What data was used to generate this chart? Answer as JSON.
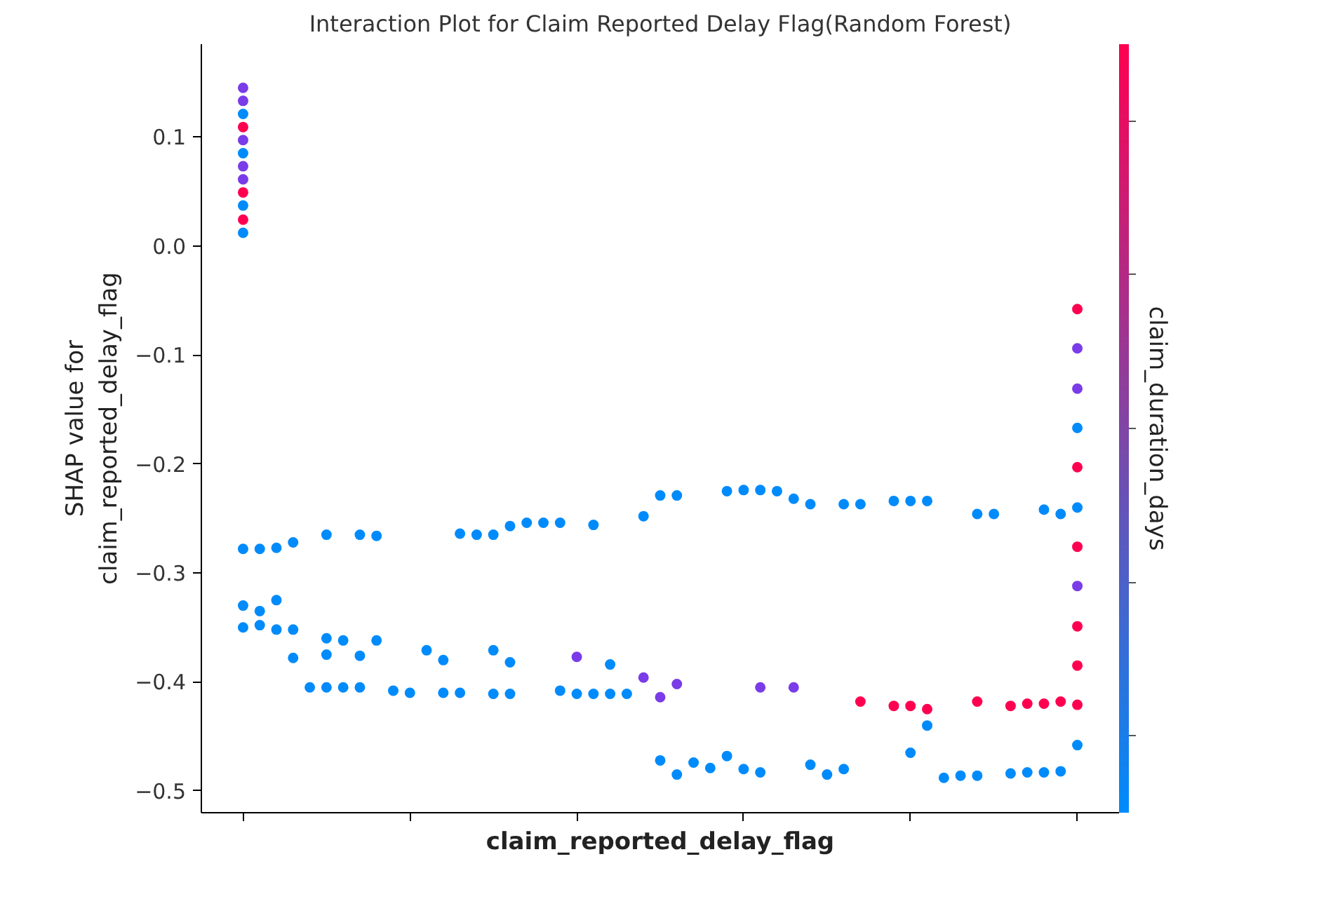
{
  "chart_data": {
    "type": "scatter",
    "title": "Interaction Plot for Claim Reported Delay Flag(Random Forest)",
    "xlabel": "claim_reported_delay_flag",
    "ylabel": "SHAP value for\nclaim_reported_delay_flag",
    "clabel": "claim_duration_days",
    "categories": [
      null,
      null,
      null,
      null,
      null,
      null,
      null,
      null,
      null,
      null,
      null,
      null,
      null,
      null,
      null,
      null,
      null,
      null,
      null,
      null,
      null,
      null,
      null,
      null,
      null,
      null,
      null,
      null,
      null,
      null,
      null,
      null,
      null,
      null,
      null,
      null,
      null,
      null,
      null,
      null,
      null,
      null,
      null,
      null,
      null,
      null,
      null,
      null,
      null,
      null,
      null,
      null,
      null,
      null,
      null
    ],
    "ylim": [
      -0.52,
      0.185
    ],
    "yticks": [
      {
        "value": -0.5,
        "label": "−0.5"
      },
      {
        "value": -0.4,
        "label": "−0.4"
      },
      {
        "value": -0.3,
        "label": "−0.3"
      },
      {
        "value": -0.2,
        "label": "−0.2"
      },
      {
        "value": -0.1,
        "label": "−0.1"
      },
      {
        "value": 0,
        "label": "0.0"
      },
      0.1
    ],
    "grid": false,
    "marker": "circle",
    "series": [
      {
        "values": [
          null,
          null,
          -0.278,
          -0.278,
          -0.277,
          -0.272,
          null,
          -0.265,
          null,
          -0.265,
          -0.266,
          null,
          null,
          null,
          null,
          -0.264,
          -0.265,
          -0.265,
          -0.257,
          -0.254,
          -0.254,
          -0.254,
          null,
          -0.256,
          null,
          null,
          -0.248,
          -0.229,
          -0.229,
          null,
          null,
          -0.225,
          -0.224,
          -0.224,
          -0.225,
          -0.232,
          -0.237,
          null,
          -0.237,
          -0.237,
          null,
          -0.234,
          -0.234,
          -0.234,
          null,
          null,
          -0.246,
          -0.246,
          null,
          null,
          -0.242,
          -0.246,
          null,
          null,
          null
        ],
        "color": "#008bfb"
      },
      {
        "values": [
          null,
          null,
          -0.33,
          -0.335,
          -0.325,
          null,
          null,
          -0.36,
          -0.362,
          null,
          -0.362,
          null,
          null,
          null,
          null,
          null,
          null,
          null,
          null,
          null,
          null,
          null,
          -0.377,
          null,
          null,
          null,
          -0.396,
          null,
          -0.402,
          null,
          null,
          null,
          null,
          -0.405,
          null,
          -0.405,
          null,
          null,
          null,
          -0.418,
          null,
          -0.422,
          -0.422,
          -0.425,
          null,
          null,
          -0.418,
          null,
          -0.422,
          -0.42,
          -0.42,
          -0.418,
          null,
          null,
          null
        ],
        "colors": [
          null,
          null,
          "#008bfb",
          "#008bfb",
          "#008bfb",
          null,
          null,
          "#008bfb",
          "#008bfb",
          null,
          "#008bfb",
          null,
          null,
          null,
          null,
          null,
          null,
          null,
          null,
          null,
          null,
          null,
          "#7a3ce8",
          null,
          null,
          null,
          "#7a3ce8",
          null,
          "#7a3ce8",
          null,
          null,
          null,
          null,
          "#7a3ce8",
          null,
          "#7a3ce8",
          null,
          null,
          null,
          "#ff0051",
          null,
          "#ff0051",
          "#ff0051",
          "#ff0051",
          null,
          null,
          "#ff0051",
          null,
          "#ff0051",
          "#ff0051",
          "#ff0051",
          "#ff0051",
          null,
          null,
          null
        ]
      },
      {
        "values": [
          null,
          null,
          -0.35,
          -0.348,
          -0.352,
          -0.352,
          null,
          -0.375,
          null,
          -0.376,
          null,
          null,
          null,
          -0.371,
          -0.38,
          null,
          null,
          -0.371,
          -0.382,
          null,
          null,
          null,
          null,
          null,
          -0.384,
          null,
          null,
          -0.414,
          null,
          null,
          null,
          null,
          null,
          null,
          null,
          null,
          null,
          null,
          null,
          null,
          null,
          null,
          -0.465,
          -0.44,
          null,
          null,
          null,
          null,
          null,
          null,
          null,
          null,
          null,
          null,
          null
        ],
        "colors": [
          null,
          null,
          "#008bfb",
          "#008bfb",
          "#008bfb",
          "#008bfb",
          null,
          "#008bfb",
          null,
          "#008bfb",
          null,
          null,
          null,
          "#008bfb",
          "#008bfb",
          null,
          null,
          "#008bfb",
          "#008bfb",
          null,
          null,
          null,
          null,
          null,
          "#008bfb",
          null,
          null,
          "#7a3ce8",
          null,
          null,
          null,
          null,
          null,
          null,
          null,
          null,
          null,
          null,
          null,
          null,
          null,
          null,
          "#008bfb",
          "#008bfb",
          null,
          null,
          null,
          null,
          null,
          null,
          null,
          null,
          null,
          null,
          null
        ]
      },
      {
        "values": [
          null,
          null,
          null,
          null,
          null,
          -0.378,
          -0.405,
          -0.405,
          -0.405,
          -0.405,
          null,
          -0.408,
          -0.41,
          null,
          -0.41,
          -0.41,
          null,
          -0.411,
          -0.411,
          null,
          null,
          -0.408,
          -0.411,
          -0.411,
          -0.411,
          -0.411,
          null,
          -0.472,
          -0.485,
          -0.474,
          -0.479,
          -0.468,
          -0.48,
          -0.483,
          null,
          null,
          -0.476,
          -0.485,
          -0.48,
          null,
          null,
          null,
          null,
          null,
          -0.488,
          -0.486,
          -0.486,
          null,
          -0.484,
          -0.483,
          -0.483,
          -0.482,
          null,
          null,
          null
        ],
        "color": "#008bfb"
      },
      {
        "values": [
          null,
          null,
          0.145,
          null,
          null,
          null,
          null,
          null,
          null,
          null,
          null,
          null,
          null,
          null,
          null,
          null,
          null,
          null,
          null,
          null,
          null,
          null,
          null,
          null,
          null,
          null,
          null,
          null,
          null,
          null,
          null,
          null,
          null,
          null,
          null,
          null,
          null,
          null,
          null,
          null,
          null,
          null,
          null,
          null,
          null,
          null,
          null,
          null,
          null,
          null,
          null,
          null,
          -0.058,
          null,
          null
        ],
        "colors": [
          null,
          null,
          "#7a3ce8",
          null,
          null,
          null,
          null,
          null,
          null,
          null,
          null,
          null,
          null,
          null,
          null,
          null,
          null,
          null,
          null,
          null,
          null,
          null,
          null,
          null,
          null,
          null,
          null,
          null,
          null,
          null,
          null,
          null,
          null,
          null,
          null,
          null,
          null,
          null,
          null,
          null,
          null,
          null,
          null,
          null,
          null,
          null,
          null,
          null,
          null,
          null,
          null,
          null,
          "#ff0051",
          null,
          null
        ]
      },
      {
        "values": [
          null,
          null,
          0.133,
          null,
          null,
          null,
          null,
          null,
          null,
          null,
          null,
          null,
          null,
          null,
          null,
          null,
          null,
          null,
          null,
          null,
          null,
          null,
          null,
          null,
          null,
          null,
          null,
          null,
          null,
          null,
          null,
          null,
          null,
          null,
          null,
          null,
          null,
          null,
          null,
          null,
          null,
          null,
          null,
          null,
          null,
          null,
          null,
          null,
          null,
          null,
          null,
          null,
          -0.094,
          null,
          null
        ],
        "colors": [
          null,
          null,
          "#7a3ce8",
          null,
          null,
          null,
          null,
          null,
          null,
          null,
          null,
          null,
          null,
          null,
          null,
          null,
          null,
          null,
          null,
          null,
          null,
          null,
          null,
          null,
          null,
          null,
          null,
          null,
          null,
          null,
          null,
          null,
          null,
          null,
          null,
          null,
          null,
          null,
          null,
          null,
          null,
          null,
          null,
          null,
          null,
          null,
          null,
          null,
          null,
          null,
          null,
          null,
          "#7a3ce8",
          null,
          null
        ]
      },
      {
        "values": [
          null,
          null,
          0.121,
          null,
          null,
          null,
          null,
          null,
          null,
          null,
          null,
          null,
          null,
          null,
          null,
          null,
          null,
          null,
          null,
          null,
          null,
          null,
          null,
          null,
          null,
          null,
          null,
          null,
          null,
          null,
          null,
          null,
          null,
          null,
          null,
          null,
          null,
          null,
          null,
          null,
          null,
          null,
          null,
          null,
          null,
          null,
          null,
          null,
          null,
          null,
          null,
          null,
          -0.131,
          null,
          null
        ],
        "colors": [
          null,
          null,
          "#008bfb",
          null,
          null,
          null,
          null,
          null,
          null,
          null,
          null,
          null,
          null,
          null,
          null,
          null,
          null,
          null,
          null,
          null,
          null,
          null,
          null,
          null,
          null,
          null,
          null,
          null,
          null,
          null,
          null,
          null,
          null,
          null,
          null,
          null,
          null,
          null,
          null,
          null,
          null,
          null,
          null,
          null,
          null,
          null,
          null,
          null,
          null,
          null,
          null,
          null,
          "#7a3ce8",
          null,
          null
        ]
      },
      {
        "values": [
          null,
          null,
          0.109,
          null,
          null,
          null,
          null,
          null,
          null,
          null,
          null,
          null,
          null,
          null,
          null,
          null,
          null,
          null,
          null,
          null,
          null,
          null,
          null,
          null,
          null,
          null,
          null,
          null,
          null,
          null,
          null,
          null,
          null,
          null,
          null,
          null,
          null,
          null,
          null,
          null,
          null,
          null,
          null,
          null,
          null,
          null,
          null,
          null,
          null,
          null,
          null,
          null,
          -0.167,
          null,
          null
        ],
        "colors": [
          null,
          null,
          "#ff0051",
          null,
          null,
          null,
          null,
          null,
          null,
          null,
          null,
          null,
          null,
          null,
          null,
          null,
          null,
          null,
          null,
          null,
          null,
          null,
          null,
          null,
          null,
          null,
          null,
          null,
          null,
          null,
          null,
          null,
          null,
          null,
          null,
          null,
          null,
          null,
          null,
          null,
          null,
          null,
          null,
          null,
          null,
          null,
          null,
          null,
          null,
          null,
          null,
          null,
          "#008bfb",
          null,
          null
        ]
      },
      {
        "values": [
          null,
          null,
          0.097,
          null,
          null,
          null,
          null,
          null,
          null,
          null,
          null,
          null,
          null,
          null,
          null,
          null,
          null,
          null,
          null,
          null,
          null,
          null,
          null,
          null,
          null,
          null,
          null,
          null,
          null,
          null,
          null,
          null,
          null,
          null,
          null,
          null,
          null,
          null,
          null,
          null,
          null,
          null,
          null,
          null,
          null,
          null,
          null,
          null,
          null,
          null,
          null,
          null,
          -0.203,
          null,
          null
        ],
        "colors": [
          null,
          null,
          "#7a3ce8",
          null,
          null,
          null,
          null,
          null,
          null,
          null,
          null,
          null,
          null,
          null,
          null,
          null,
          null,
          null,
          null,
          null,
          null,
          null,
          null,
          null,
          null,
          null,
          null,
          null,
          null,
          null,
          null,
          null,
          null,
          null,
          null,
          null,
          null,
          null,
          null,
          null,
          null,
          null,
          null,
          null,
          null,
          null,
          null,
          null,
          null,
          null,
          null,
          null,
          "#ff0051",
          null,
          null
        ]
      },
      {
        "values": [
          null,
          null,
          0.085,
          null,
          null,
          null,
          null,
          null,
          null,
          null,
          null,
          null,
          null,
          null,
          null,
          null,
          null,
          null,
          null,
          null,
          null,
          null,
          null,
          null,
          null,
          null,
          null,
          null,
          null,
          null,
          null,
          null,
          null,
          null,
          null,
          null,
          null,
          null,
          null,
          null,
          null,
          null,
          null,
          null,
          null,
          null,
          null,
          null,
          null,
          null,
          null,
          null,
          -0.24,
          null,
          null
        ],
        "colors": [
          null,
          null,
          "#008bfb",
          null,
          null,
          null,
          null,
          null,
          null,
          null,
          null,
          null,
          null,
          null,
          null,
          null,
          null,
          null,
          null,
          null,
          null,
          null,
          null,
          null,
          null,
          null,
          null,
          null,
          null,
          null,
          null,
          null,
          null,
          null,
          null,
          null,
          null,
          null,
          null,
          null,
          null,
          null,
          null,
          null,
          null,
          null,
          null,
          null,
          null,
          null,
          null,
          null,
          "#008bfb",
          null,
          null
        ]
      },
      {
        "values": [
          null,
          null,
          0.073,
          null,
          null,
          null,
          null,
          null,
          null,
          null,
          null,
          null,
          null,
          null,
          null,
          null,
          null,
          null,
          null,
          null,
          null,
          null,
          null,
          null,
          null,
          null,
          null,
          null,
          null,
          null,
          null,
          null,
          null,
          null,
          null,
          null,
          null,
          null,
          null,
          null,
          null,
          null,
          null,
          null,
          null,
          null,
          null,
          null,
          null,
          null,
          null,
          null,
          -0.276,
          null,
          null
        ],
        "colors": [
          null,
          null,
          "#7a3ce8",
          null,
          null,
          null,
          null,
          null,
          null,
          null,
          null,
          null,
          null,
          null,
          null,
          null,
          null,
          null,
          null,
          null,
          null,
          null,
          null,
          null,
          null,
          null,
          null,
          null,
          null,
          null,
          null,
          null,
          null,
          null,
          null,
          null,
          null,
          null,
          null,
          null,
          null,
          null,
          null,
          null,
          null,
          null,
          null,
          null,
          null,
          null,
          null,
          null,
          "#ff0051",
          null,
          null
        ]
      },
      {
        "values": [
          null,
          null,
          0.061,
          null,
          null,
          null,
          null,
          null,
          null,
          null,
          null,
          null,
          null,
          null,
          null,
          null,
          null,
          null,
          null,
          null,
          null,
          null,
          null,
          null,
          null,
          null,
          null,
          null,
          null,
          null,
          null,
          null,
          null,
          null,
          null,
          null,
          null,
          null,
          null,
          null,
          null,
          null,
          null,
          null,
          null,
          null,
          null,
          null,
          null,
          null,
          null,
          null,
          -0.312,
          null,
          null
        ],
        "colors": [
          null,
          null,
          "#7a3ce8",
          null,
          null,
          null,
          null,
          null,
          null,
          null,
          null,
          null,
          null,
          null,
          null,
          null,
          null,
          null,
          null,
          null,
          null,
          null,
          null,
          null,
          null,
          null,
          null,
          null,
          null,
          null,
          null,
          null,
          null,
          null,
          null,
          null,
          null,
          null,
          null,
          null,
          null,
          null,
          null,
          null,
          null,
          null,
          null,
          null,
          null,
          null,
          null,
          null,
          "#7a3ce8",
          null,
          null
        ]
      },
      {
        "values": [
          null,
          null,
          0.049,
          null,
          null,
          null,
          null,
          null,
          null,
          null,
          null,
          null,
          null,
          null,
          null,
          null,
          null,
          null,
          null,
          null,
          null,
          null,
          null,
          null,
          null,
          null,
          null,
          null,
          null,
          null,
          null,
          null,
          null,
          null,
          null,
          null,
          null,
          null,
          null,
          null,
          null,
          null,
          null,
          null,
          null,
          null,
          null,
          null,
          null,
          null,
          null,
          null,
          -0.349,
          null,
          null
        ],
        "colors": [
          null,
          null,
          "#ff0051",
          null,
          null,
          null,
          null,
          null,
          null,
          null,
          null,
          null,
          null,
          null,
          null,
          null,
          null,
          null,
          null,
          null,
          null,
          null,
          null,
          null,
          null,
          null,
          null,
          null,
          null,
          null,
          null,
          null,
          null,
          null,
          null,
          null,
          null,
          null,
          null,
          null,
          null,
          null,
          null,
          null,
          null,
          null,
          null,
          null,
          null,
          null,
          null,
          null,
          "#ff0051",
          null,
          null
        ]
      },
      {
        "values": [
          null,
          null,
          0.037,
          null,
          null,
          null,
          null,
          null,
          null,
          null,
          null,
          null,
          null,
          null,
          null,
          null,
          null,
          null,
          null,
          null,
          null,
          null,
          null,
          null,
          null,
          null,
          null,
          null,
          null,
          null,
          null,
          null,
          null,
          null,
          null,
          null,
          null,
          null,
          null,
          null,
          null,
          null,
          null,
          null,
          null,
          null,
          null,
          null,
          null,
          null,
          null,
          null,
          -0.385,
          null,
          null
        ],
        "colors": [
          null,
          null,
          "#008bfb",
          null,
          null,
          null,
          null,
          null,
          null,
          null,
          null,
          null,
          null,
          null,
          null,
          null,
          null,
          null,
          null,
          null,
          null,
          null,
          null,
          null,
          null,
          null,
          null,
          null,
          null,
          null,
          null,
          null,
          null,
          null,
          null,
          null,
          null,
          null,
          null,
          null,
          null,
          null,
          null,
          null,
          null,
          null,
          null,
          null,
          null,
          null,
          null,
          null,
          "#ff0051",
          null,
          null
        ]
      },
      {
        "values": [
          null,
          null,
          0.024,
          null,
          null,
          null,
          null,
          null,
          null,
          null,
          null,
          null,
          null,
          null,
          null,
          null,
          null,
          null,
          null,
          null,
          null,
          null,
          null,
          null,
          null,
          null,
          null,
          null,
          null,
          null,
          null,
          null,
          null,
          null,
          null,
          null,
          null,
          null,
          null,
          null,
          null,
          null,
          null,
          null,
          null,
          null,
          null,
          null,
          null,
          null,
          null,
          null,
          -0.421,
          null,
          null
        ],
        "colors": [
          null,
          null,
          "#ff0051",
          null,
          null,
          null,
          null,
          null,
          null,
          null,
          null,
          null,
          null,
          null,
          null,
          null,
          null,
          null,
          null,
          null,
          null,
          null,
          null,
          null,
          null,
          null,
          null,
          null,
          null,
          null,
          null,
          null,
          null,
          null,
          null,
          null,
          null,
          null,
          null,
          null,
          null,
          null,
          null,
          null,
          null,
          null,
          null,
          null,
          null,
          null,
          null,
          null,
          "#ff0051",
          null,
          null
        ]
      },
      {
        "values": [
          null,
          null,
          0.012,
          null,
          null,
          null,
          null,
          null,
          null,
          null,
          null,
          null,
          null,
          null,
          null,
          null,
          null,
          null,
          null,
          null,
          null,
          null,
          null,
          null,
          null,
          null,
          null,
          null,
          null,
          null,
          null,
          null,
          null,
          null,
          null,
          null,
          null,
          null,
          null,
          null,
          null,
          null,
          null,
          null,
          null,
          null,
          null,
          null,
          null,
          null,
          null,
          null,
          -0.458,
          null,
          null
        ],
        "colors": [
          null,
          null,
          "#008bfb",
          null,
          null,
          null,
          null,
          null,
          null,
          null,
          null,
          null,
          null,
          null,
          null,
          null,
          null,
          null,
          null,
          null,
          null,
          null,
          null,
          null,
          null,
          null,
          null,
          null,
          null,
          null,
          null,
          null,
          null,
          null,
          null,
          null,
          null,
          null,
          null,
          null,
          null,
          null,
          null,
          null,
          null,
          null,
          null,
          null,
          null,
          null,
          null,
          null,
          "#008bfb",
          null,
          null
        ]
      }
    ]
  }
}
